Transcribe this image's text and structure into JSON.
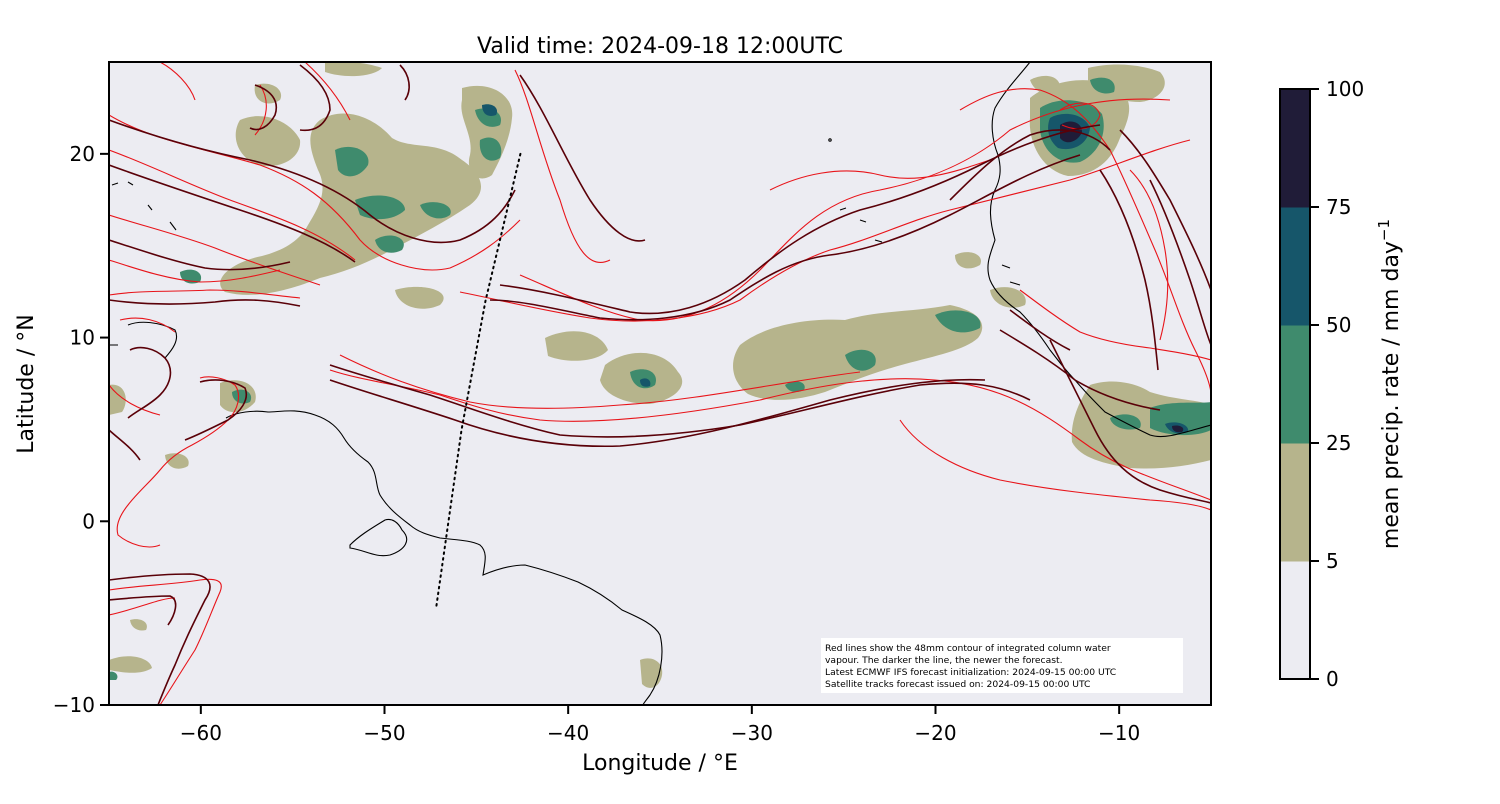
{
  "title": "Valid time: 2024-09-18 12:00UTC",
  "map": {
    "xlabel": "Longitude / °E",
    "ylabel": "Latitude / °N",
    "xlim": [
      -65,
      -5
    ],
    "ylim": [
      -10,
      25
    ],
    "xticks": [
      -60,
      -50,
      -40,
      -30,
      -20,
      -10
    ],
    "yticks": [
      -10,
      0,
      10,
      20
    ],
    "xtick_labels": [
      "−60",
      "−50",
      "−40",
      "−30",
      "−20",
      "−10"
    ],
    "ytick_labels": [
      "−10",
      "0",
      "10",
      "20"
    ],
    "background_color": "#ECECF2",
    "satellite_track": [
      [
        -42.6,
        20.0
      ],
      [
        -44.5,
        12.0
      ],
      [
        -45.8,
        5.0
      ],
      [
        -47.2,
        -4.8
      ]
    ]
  },
  "colorbar": {
    "label": "mean precip. rate / mm day",
    "label_superscript": "−1",
    "levels": [
      0,
      5,
      25,
      50,
      75,
      100
    ],
    "tick_labels": [
      "0",
      "5",
      "25",
      "50",
      "75",
      "100"
    ],
    "colors": [
      "#ECECF2",
      "#B6B48C",
      "#3F8B6D",
      "#16566A",
      "#201C38"
    ]
  },
  "contour_colors": {
    "older_forecast": "#E8141A",
    "newer_forecast": "#5A0008",
    "coastline": "#000000"
  },
  "note": {
    "lines": [
      "Red lines show the 48mm contour of integrated column water",
      "vapour. The darker the line, the newer the forecast.",
      "Latest ECMWF IFS forecast initialization: 2024-09-15 00:00 UTC",
      "Satellite tracks forecast issued on: 2024-09-15 00:00 UTC"
    ]
  }
}
